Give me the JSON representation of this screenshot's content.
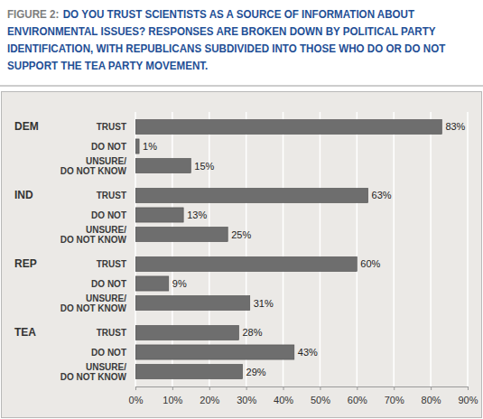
{
  "chart_data": {
    "type": "bar",
    "orientation": "horizontal",
    "title": "FIGURE 2:",
    "subtitle": "DO YOU TRUST SCIENTISTS AS A SOURCE OF INFORMATION ABOUT ENVIRONMENTAL ISSUES? RESPONSES ARE BROKEN DOWN BY POLITICAL PARTY IDENTIFICATION, WITH REPUBLICANS SUBDIVIDED INTO THOSE WHO DO OR DO NOT SUPPORT THE TEA PARTY MOVEMENT.",
    "categories": [
      "TRUST",
      "DO NOT",
      "UNSURE/\nDO NOT KNOW"
    ],
    "series": [
      {
        "name": "DEM",
        "values": [
          83,
          1,
          15
        ],
        "value_labels": [
          "83%",
          "1%",
          "15%"
        ]
      },
      {
        "name": "IND",
        "values": [
          63,
          13,
          25
        ],
        "value_labels": [
          "63%",
          "13%",
          "25%"
        ]
      },
      {
        "name": "REP",
        "values": [
          60,
          9,
          31
        ],
        "value_labels": [
          "60%",
          "9%",
          "31%"
        ]
      },
      {
        "name": "TEA",
        "values": [
          28,
          43,
          29
        ],
        "value_labels": [
          "28%",
          "43%",
          "29%"
        ]
      }
    ],
    "color": "#6e6e6e",
    "data_labels": true,
    "grid": true,
    "xlim": [
      0,
      90
    ],
    "xticks": [
      {
        "value": 0,
        "label": "0%"
      },
      {
        "value": 10,
        "label": "10%"
      },
      {
        "value": 20,
        "label": "20%"
      },
      {
        "value": 30,
        "label": "30%"
      },
      {
        "value": 40,
        "label": "40%"
      },
      {
        "value": 50,
        "label": "50%"
      },
      {
        "value": 60,
        "label": "60%"
      },
      {
        "value": 70,
        "label": "70%"
      },
      {
        "value": 80,
        "label": "80%"
      },
      {
        "value": 90,
        "label": "90%"
      }
    ]
  }
}
